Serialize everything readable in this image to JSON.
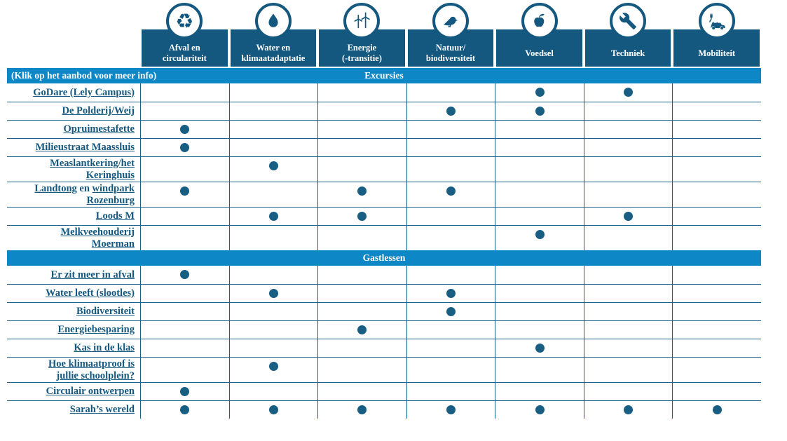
{
  "colors": {
    "dark_blue": "#15587F",
    "bright_blue": "#0E87C7",
    "grid_line": "#1B6288",
    "dot": "#175E82"
  },
  "columns": [
    {
      "label": "Afval en\ncirculariteit",
      "icon": "recycle-icon"
    },
    {
      "label": "Water en\nklimaatadaptatie",
      "icon": "water-drop-icon"
    },
    {
      "label": "Energie\n(-transitie)",
      "icon": "wind-turbine-icon"
    },
    {
      "label": "Natuur/\nbiodiversiteit",
      "icon": "bird-icon"
    },
    {
      "label": "Voedsel",
      "icon": "apple-icon"
    },
    {
      "label": "Techniek",
      "icon": "wrench-icon"
    },
    {
      "label": "Mobiliteit",
      "icon": "electric-car-icon"
    }
  ],
  "sections": [
    {
      "title": "Excursies",
      "info": "(Klik op het aanbod voor meer info)",
      "rows": [
        {
          "lines": [
            [
              {
                "t": "GoDare (Lely Campus)",
                "u": true
              }
            ]
          ],
          "dots": [
            4,
            5
          ]
        },
        {
          "lines": [
            [
              {
                "t": "De Polderij/Weij",
                "u": true
              }
            ]
          ],
          "dots": [
            3,
            4
          ]
        },
        {
          "lines": [
            [
              {
                "t": "Opruimestafette",
                "u": true
              }
            ]
          ],
          "dots": [
            0
          ]
        },
        {
          "lines": [
            [
              {
                "t": "Milieustraat Maassluis",
                "u": true
              }
            ]
          ],
          "dots": [
            0
          ]
        },
        {
          "lines": [
            [
              {
                "t": "Measlantkering/het",
                "u": true
              }
            ],
            [
              {
                "t": "Keringhuis",
                "u": true
              }
            ]
          ],
          "dots": [
            1
          ]
        },
        {
          "lines": [
            [
              {
                "t": "Landtong",
                "u": true
              },
              {
                "t": " en ",
                "u": false
              },
              {
                "t": "windpark",
                "u": true
              }
            ],
            [
              {
                "t": "Rozenburg",
                "u": true
              }
            ]
          ],
          "dots": [
            0,
            2,
            3
          ]
        },
        {
          "lines": [
            [
              {
                "t": "Loods M",
                "u": true
              }
            ]
          ],
          "dots": [
            1,
            2,
            5
          ]
        },
        {
          "lines": [
            [
              {
                "t": "Melkveehouderij",
                "u": true
              }
            ],
            [
              {
                "t": "Moerman",
                "u": true
              }
            ]
          ],
          "dots": [
            4
          ]
        }
      ]
    },
    {
      "title": "Gastlessen",
      "info": "",
      "rows": [
        {
          "lines": [
            [
              {
                "t": "Er zit meer in afval",
                "u": true
              }
            ]
          ],
          "dots": [
            0
          ]
        },
        {
          "lines": [
            [
              {
                "t": "Water leeft (slootles)",
                "u": true
              }
            ]
          ],
          "dots": [
            1,
            3
          ]
        },
        {
          "lines": [
            [
              {
                "t": "Biodiversiteit",
                "u": true
              }
            ]
          ],
          "dots": [
            3
          ]
        },
        {
          "lines": [
            [
              {
                "t": "Energiebesparing",
                "u": true
              }
            ]
          ],
          "dots": [
            2
          ]
        },
        {
          "lines": [
            [
              {
                "t": "Kas in de klas",
                "u": true
              }
            ]
          ],
          "dots": [
            4
          ]
        },
        {
          "lines": [
            [
              {
                "t": "Hoe klimaatproof is",
                "u": true
              }
            ],
            [
              {
                "t": "jullie schoolplein?",
                "u": true
              }
            ]
          ],
          "dots": [
            1
          ]
        },
        {
          "lines": [
            [
              {
                "t": "Circulair ontwerpen",
                "u": true
              }
            ]
          ],
          "dots": [
            0
          ]
        },
        {
          "lines": [
            [
              {
                "t": "Sarah’s wereld",
                "u": true
              }
            ]
          ],
          "dots": [
            0,
            1,
            2,
            3,
            4,
            5,
            6
          ]
        }
      ]
    }
  ]
}
